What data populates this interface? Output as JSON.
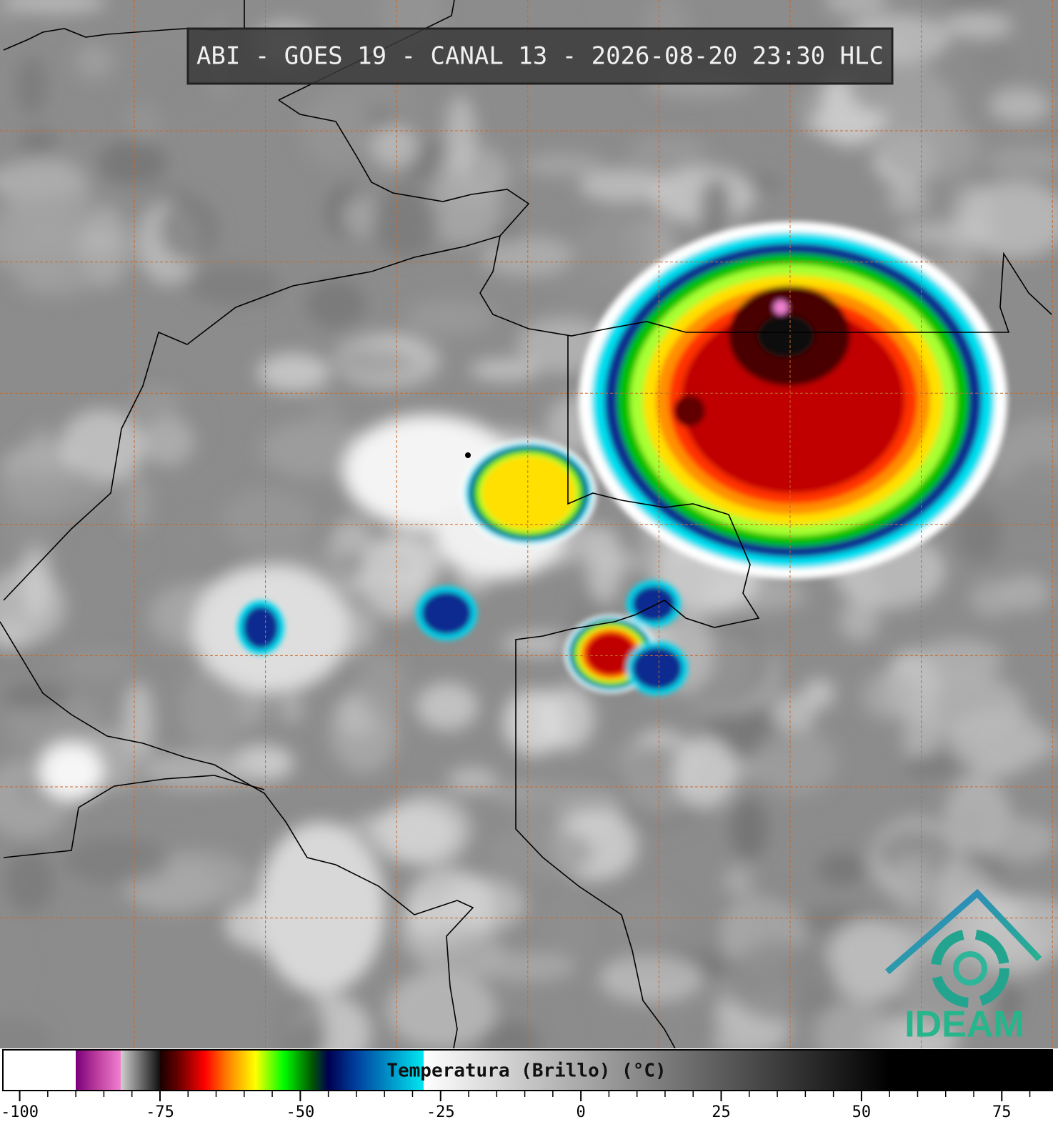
{
  "chart_data": {
    "type": "colorbar",
    "title": "ABI - GOES 19 - CANAL 13 - 2026-08-20 23:30 HLC",
    "colorbar_label": "Temperatura (Brillo) (°C)",
    "logo_text": "IDEAM",
    "xlim": [
      -103,
      84
    ],
    "xticks": [
      -100,
      -75,
      -50,
      -25,
      0,
      25,
      50,
      75
    ],
    "minor_xticks": [
      -95,
      -90,
      -85,
      -80,
      -70,
      -65,
      -60,
      -55,
      -45,
      -40,
      -35,
      -30,
      -20,
      -15,
      -10,
      -5,
      5,
      10,
      15,
      20,
      30,
      35,
      40,
      45,
      55,
      60,
      65,
      70,
      80
    ],
    "colorscale": [
      {
        "value": -103,
        "color": "#ffffff"
      },
      {
        "value": -90,
        "color": "#ffffff"
      },
      {
        "value": -90,
        "color": "#7a007a"
      },
      {
        "value": -86,
        "color": "#c040a0"
      },
      {
        "value": -82,
        "color": "#f080d0"
      },
      {
        "value": -82,
        "color": "#d0d0d0"
      },
      {
        "value": -75,
        "color": "#101010"
      },
      {
        "value": -75,
        "color": "#1a0000"
      },
      {
        "value": -72,
        "color": "#600000"
      },
      {
        "value": -67,
        "color": "#ff0000"
      },
      {
        "value": -63,
        "color": "#ff8000"
      },
      {
        "value": -58,
        "color": "#ffff00"
      },
      {
        "value": -53,
        "color": "#00ff00"
      },
      {
        "value": -48,
        "color": "#005a00"
      },
      {
        "value": -45,
        "color": "#000050"
      },
      {
        "value": -40,
        "color": "#0040a0"
      },
      {
        "value": -28,
        "color": "#00e8f0"
      },
      {
        "value": -28,
        "color": "#ffffff"
      },
      {
        "value": 55,
        "color": "#000000"
      },
      {
        "value": 84,
        "color": "#000000"
      }
    ]
  }
}
